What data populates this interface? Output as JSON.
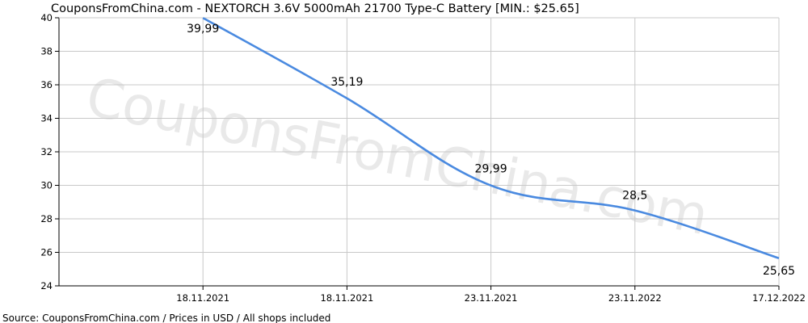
{
  "title": "CouponsFromChina.com - NEXTORCH 3.6V 5000mAh 21700 Type-C Battery [MIN.: $25.65]",
  "source": "Source: CouponsFromChina.com / Prices in USD / All shops included",
  "watermark": "CouponsFromChina.com",
  "colors": {
    "line": "#4a8ae0",
    "grid": "#c8c8c8",
    "axis": "#000000",
    "plot_bg": "#ffffff"
  },
  "chart_data": {
    "type": "line",
    "title": "CouponsFromChina.com - NEXTORCH 3.6V 5000mAh 21700 Type-C Battery [MIN.: $25.65]",
    "xlabel": "",
    "ylabel": "",
    "categories": [
      "18.11.2021",
      "18.11.2021",
      "23.11.2021",
      "23.11.2022",
      "17.12.2022"
    ],
    "series": [
      {
        "values": [
          39.99,
          35.19,
          29.99,
          28.5,
          25.65
        ],
        "labels": [
          "39,99",
          "35,19",
          "29,99",
          "28,5",
          "25,65"
        ]
      }
    ],
    "ylim": [
      24,
      40
    ],
    "yticks": [
      24,
      26,
      28,
      30,
      32,
      34,
      36,
      38,
      40
    ],
    "grid": true,
    "legend": "none"
  }
}
